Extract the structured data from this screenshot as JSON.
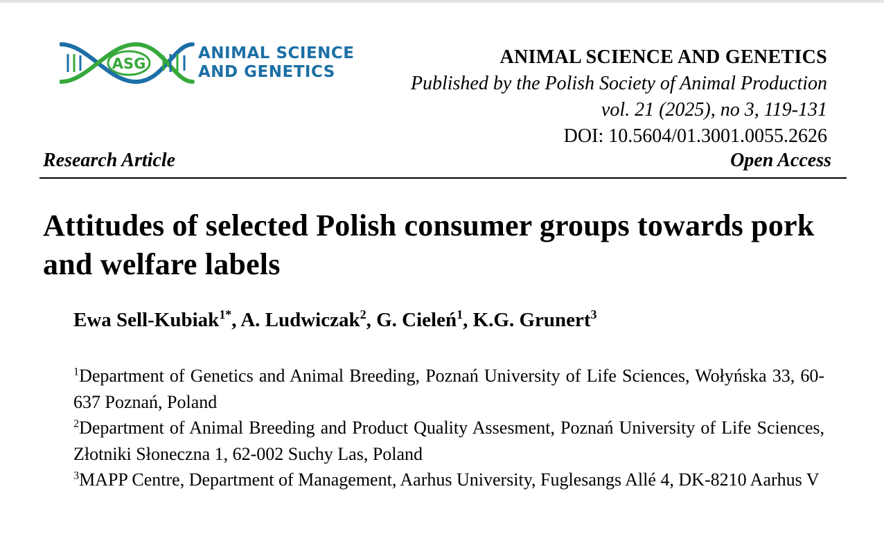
{
  "logo": {
    "mark_text": "ASG",
    "line1": "ANIMAL SCIENCE",
    "line2": "AND GENETICS",
    "colors": {
      "blue": "#1c6fa6",
      "green": "#37a93c"
    }
  },
  "journal": {
    "name": "ANIMAL SCIENCE AND GENETICS",
    "publisher": "Published by the Polish Society of Animal Production",
    "volume": "vol. 21 (2025), no 3, 119-131",
    "doi": "DOI: 10.5604/01.3001.0055.2626"
  },
  "article_type": "Research Article",
  "access": "Open Access",
  "title": "Attitudes of selected Polish consumer groups towards pork and welfare labels",
  "authors": [
    {
      "name": "Ewa Sell-Kubiak",
      "sup": "1*",
      "sep": ", "
    },
    {
      "name": "A. Ludwiczak",
      "sup": "2",
      "sep": ", "
    },
    {
      "name": "G. Cieleń",
      "sup": "1",
      "sep": ", "
    },
    {
      "name": "K.G. Grunert",
      "sup": "3",
      "sep": ""
    }
  ],
  "affiliations": [
    {
      "sup": "1",
      "text": "Department of Genetics and Animal Breeding, Poznań University of Life Sciences, Wołyńska 33, 60-637 Poznań, Poland"
    },
    {
      "sup": "2",
      "text": "Department of Animal Breeding and Product Quality Assesment, Poznań University of Life Sciences, Złotniki Słoneczna 1, 62-002 Suchy Las, Poland"
    },
    {
      "sup": "3",
      "text": "MAPP Centre, Department of Management, Aarhus University, Fuglesangs Allé 4, DK-8210 Aarhus V"
    }
  ]
}
